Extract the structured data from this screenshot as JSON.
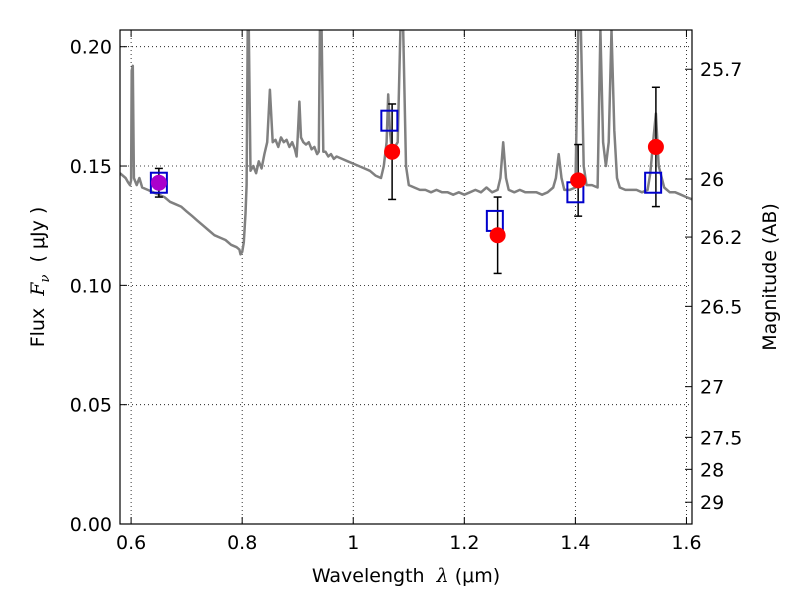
{
  "chart_data": {
    "type": "scatter",
    "xlabel": "Wavelength  λ (μm)",
    "ylabel": "Flux  F_ν  ( μJy )",
    "ylabel_parts": {
      "prefix": "Flux  ",
      "symbol": "F",
      "subscript": "ν",
      "suffix": "  ( μJy )"
    },
    "xlabel_parts": {
      "prefix": "Wavelength  ",
      "symbol": "λ",
      "suffix": " (μm)"
    },
    "y2label": "Magnitude (AB)",
    "xlim": [
      0.58,
      1.61
    ],
    "ylim": [
      0.0,
      0.207
    ],
    "grid": true,
    "x_ticks": [
      0.6,
      0.8,
      1.0,
      1.2,
      1.4,
      1.6
    ],
    "x_tick_labels": [
      "0.6",
      "0.8",
      "1",
      "1.2",
      "1.4",
      "1.6"
    ],
    "y_ticks": [
      0.0,
      0.05,
      0.1,
      0.15,
      0.2
    ],
    "y_tick_labels": [
      "0.00",
      "0.05",
      "0.10",
      "0.15",
      "0.20"
    ],
    "y2_ticks": [
      {
        "mag": 25.7,
        "label": "25.7"
      },
      {
        "mag": 26,
        "label": "26"
      },
      {
        "mag": 26.2,
        "label": "26.2"
      },
      {
        "mag": 26.5,
        "label": "26.5"
      },
      {
        "mag": 27,
        "label": "27"
      },
      {
        "mag": 27.5,
        "label": "27.5"
      },
      {
        "mag": 28,
        "label": "28"
      },
      {
        "mag": 29,
        "label": "29"
      }
    ],
    "colors": {
      "spectrum": "#808080",
      "observed": "#ff0000",
      "observed_overlap": "#aa00cc",
      "model": "#0000cc",
      "errorbar": "#000000",
      "grid": "#000000"
    },
    "series": [
      {
        "kind": "line",
        "points": [
          [
            0.58,
            0.147
          ],
          [
            0.59,
            0.145
          ],
          [
            0.595,
            0.143
          ],
          [
            0.598,
            0.142
          ],
          [
            0.6,
            0.144
          ],
          [
            0.601,
            0.19
          ],
          [
            0.603,
            0.192
          ],
          [
            0.605,
            0.145
          ],
          [
            0.61,
            0.142
          ],
          [
            0.615,
            0.145
          ],
          [
            0.62,
            0.141
          ],
          [
            0.63,
            0.14
          ],
          [
            0.64,
            0.139
          ],
          [
            0.65,
            0.138
          ],
          [
            0.66,
            0.137
          ],
          [
            0.67,
            0.135
          ],
          [
            0.68,
            0.134
          ],
          [
            0.69,
            0.133
          ],
          [
            0.7,
            0.131
          ],
          [
            0.71,
            0.129
          ],
          [
            0.72,
            0.127
          ],
          [
            0.73,
            0.125
          ],
          [
            0.74,
            0.123
          ],
          [
            0.75,
            0.121
          ],
          [
            0.76,
            0.12
          ],
          [
            0.77,
            0.119
          ],
          [
            0.78,
            0.117
          ],
          [
            0.79,
            0.116
          ],
          [
            0.795,
            0.115
          ],
          [
            0.797,
            0.113
          ],
          [
            0.8,
            0.114
          ],
          [
            0.803,
            0.118
          ],
          [
            0.806,
            0.13
          ],
          [
            0.808,
            0.142
          ],
          [
            0.81,
            0.207
          ],
          [
            0.812,
            0.207
          ],
          [
            0.815,
            0.148
          ],
          [
            0.82,
            0.15
          ],
          [
            0.825,
            0.147
          ],
          [
            0.83,
            0.152
          ],
          [
            0.835,
            0.149
          ],
          [
            0.84,
            0.155
          ],
          [
            0.845,
            0.16
          ],
          [
            0.85,
            0.182
          ],
          [
            0.855,
            0.16
          ],
          [
            0.86,
            0.161
          ],
          [
            0.865,
            0.158
          ],
          [
            0.87,
            0.162
          ],
          [
            0.875,
            0.16
          ],
          [
            0.88,
            0.161
          ],
          [
            0.885,
            0.158
          ],
          [
            0.89,
            0.16
          ],
          [
            0.895,
            0.157
          ],
          [
            0.898,
            0.154
          ],
          [
            0.9,
            0.162
          ],
          [
            0.903,
            0.177
          ],
          [
            0.906,
            0.162
          ],
          [
            0.91,
            0.16
          ],
          [
            0.915,
            0.159
          ],
          [
            0.92,
            0.16
          ],
          [
            0.925,
            0.157
          ],
          [
            0.93,
            0.158
          ],
          [
            0.935,
            0.155
          ],
          [
            0.938,
            0.156
          ],
          [
            0.94,
            0.207
          ],
          [
            0.943,
            0.207
          ],
          [
            0.946,
            0.156
          ],
          [
            0.95,
            0.156
          ],
          [
            0.955,
            0.154
          ],
          [
            0.96,
            0.155
          ],
          [
            0.965,
            0.153
          ],
          [
            0.97,
            0.154
          ],
          [
            0.98,
            0.153
          ],
          [
            0.99,
            0.152
          ],
          [
            1.0,
            0.151
          ],
          [
            1.01,
            0.15
          ],
          [
            1.02,
            0.149
          ],
          [
            1.03,
            0.148
          ],
          [
            1.04,
            0.146
          ],
          [
            1.05,
            0.145
          ],
          [
            1.055,
            0.15
          ],
          [
            1.06,
            0.16
          ],
          [
            1.063,
            0.18
          ],
          [
            1.066,
            0.165
          ],
          [
            1.07,
            0.155
          ],
          [
            1.075,
            0.158
          ],
          [
            1.08,
            0.16
          ],
          [
            1.085,
            0.207
          ],
          [
            1.09,
            0.207
          ],
          [
            1.095,
            0.15
          ],
          [
            1.1,
            0.142
          ],
          [
            1.11,
            0.141
          ],
          [
            1.12,
            0.14
          ],
          [
            1.13,
            0.14
          ],
          [
            1.14,
            0.139
          ],
          [
            1.15,
            0.14
          ],
          [
            1.16,
            0.139
          ],
          [
            1.17,
            0.139
          ],
          [
            1.18,
            0.138
          ],
          [
            1.19,
            0.139
          ],
          [
            1.2,
            0.138
          ],
          [
            1.21,
            0.139
          ],
          [
            1.22,
            0.14
          ],
          [
            1.23,
            0.139
          ],
          [
            1.24,
            0.141
          ],
          [
            1.25,
            0.139
          ],
          [
            1.26,
            0.14
          ],
          [
            1.265,
            0.145
          ],
          [
            1.27,
            0.16
          ],
          [
            1.275,
            0.145
          ],
          [
            1.28,
            0.14
          ],
          [
            1.29,
            0.139
          ],
          [
            1.3,
            0.14
          ],
          [
            1.31,
            0.139
          ],
          [
            1.32,
            0.139
          ],
          [
            1.33,
            0.139
          ],
          [
            1.34,
            0.138
          ],
          [
            1.35,
            0.139
          ],
          [
            1.36,
            0.141
          ],
          [
            1.365,
            0.145
          ],
          [
            1.37,
            0.155
          ],
          [
            1.375,
            0.145
          ],
          [
            1.38,
            0.14
          ],
          [
            1.39,
            0.14
          ],
          [
            1.4,
            0.141
          ],
          [
            1.405,
            0.207
          ],
          [
            1.41,
            0.207
          ],
          [
            1.415,
            0.15
          ],
          [
            1.42,
            0.142
          ],
          [
            1.43,
            0.142
          ],
          [
            1.44,
            0.141
          ],
          [
            1.445,
            0.207
          ],
          [
            1.45,
            0.16
          ],
          [
            1.455,
            0.15
          ],
          [
            1.46,
            0.16
          ],
          [
            1.465,
            0.207
          ],
          [
            1.47,
            0.165
          ],
          [
            1.475,
            0.145
          ],
          [
            1.48,
            0.141
          ],
          [
            1.49,
            0.14
          ],
          [
            1.5,
            0.14
          ],
          [
            1.51,
            0.14
          ],
          [
            1.52,
            0.139
          ],
          [
            1.53,
            0.14
          ],
          [
            1.535,
            0.147
          ],
          [
            1.54,
            0.16
          ],
          [
            1.545,
            0.172
          ],
          [
            1.55,
            0.15
          ],
          [
            1.56,
            0.141
          ],
          [
            1.57,
            0.139
          ],
          [
            1.58,
            0.139
          ],
          [
            1.59,
            0.138
          ],
          [
            1.6,
            0.137
          ],
          [
            1.61,
            0.136
          ]
        ]
      },
      {
        "kind": "points",
        "marker": "circle",
        "points": [
          {
            "x": 0.65,
            "y": 0.143,
            "yerr": 0.006,
            "overlap": true
          },
          {
            "x": 1.07,
            "y": 0.156,
            "yerr": 0.02
          },
          {
            "x": 1.26,
            "y": 0.121,
            "yerr": 0.016
          },
          {
            "x": 1.405,
            "y": 0.144,
            "yerr": 0.015
          },
          {
            "x": 1.545,
            "y": 0.158,
            "yerr": 0.025
          }
        ]
      },
      {
        "kind": "points",
        "marker": "open-square",
        "points": [
          {
            "x": 0.65,
            "y": 0.143
          },
          {
            "x": 1.065,
            "y": 0.169
          },
          {
            "x": 1.255,
            "y": 0.127
          },
          {
            "x": 1.4,
            "y": 0.139
          },
          {
            "x": 1.54,
            "y": 0.143
          }
        ]
      }
    ]
  }
}
